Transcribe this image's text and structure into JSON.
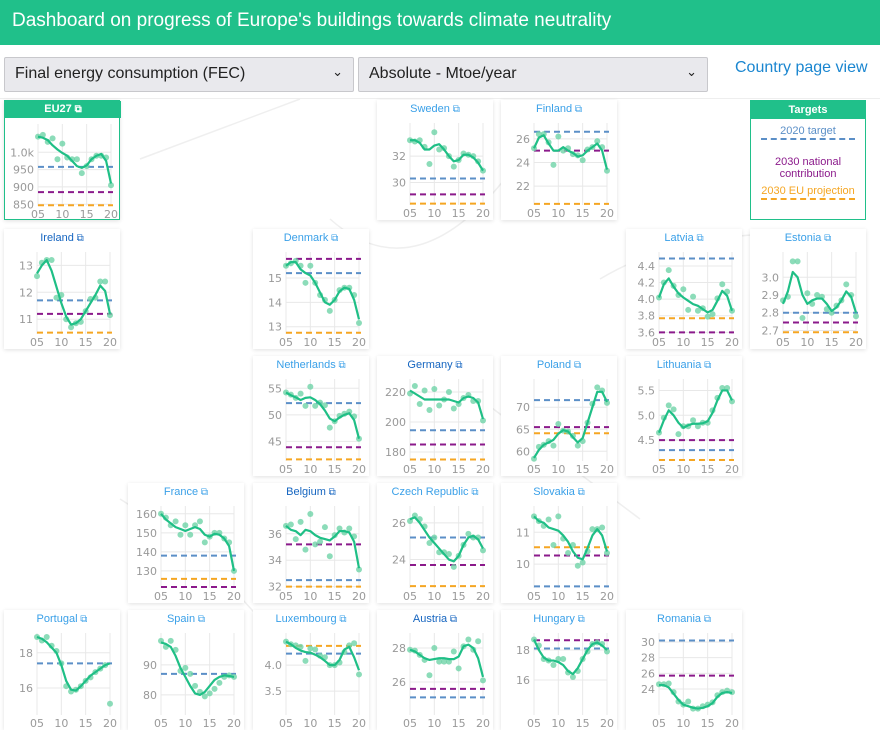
{
  "header": {
    "title": "Dashboard on progress of Europe's buildings towards climate neutrality"
  },
  "controls": {
    "indicator_select": "Final energy consumption (FEC)",
    "unit_select": "Absolute - Mtoe/year",
    "country_page_link": "Country page view"
  },
  "colors": {
    "brand": "#20c08a",
    "target_2020": "#5b8fc7",
    "target_2030_national": "#8b1a8b",
    "target_2030_eu": "#f5a623",
    "trend": "#1fbf86",
    "points": "#6fd3a8",
    "link": "#3aa0e8",
    "link_visited": "#1565c0"
  },
  "legend": {
    "title": "Targets",
    "items": [
      {
        "label": "2020 target",
        "key": "target_2020"
      },
      {
        "label": "2030 national contribution",
        "key": "target_2030_national"
      },
      {
        "label": "2030 EU projection",
        "key": "target_2030_eu"
      }
    ]
  },
  "external_link_icon": "external-link-icon",
  "years": [
    2005,
    2006,
    2007,
    2008,
    2009,
    2010,
    2011,
    2012,
    2013,
    2014,
    2015,
    2016,
    2017,
    2018,
    2019,
    2020
  ],
  "x_ticks": [
    {
      "v": 2005,
      "l": "05"
    },
    {
      "v": 2010,
      "l": "10"
    },
    {
      "v": 2015,
      "l": "15"
    },
    {
      "v": 2020,
      "l": "20"
    }
  ],
  "countries": [
    {
      "name": "EU27",
      "ylim": [
        845,
        1070
      ],
      "yticks": [
        {
          "v": 850,
          "l": "850"
        },
        {
          "v": 900,
          "l": "900"
        },
        {
          "v": 950,
          "l": "950"
        },
        {
          "v": 1000,
          "l": "1.0k"
        }
      ],
      "targets": {
        "t2020": 958,
        "t2030n": 885,
        "t2030e": 847
      },
      "points": [
        1045,
        1050,
        1030,
        1040,
        980,
        1025,
        985,
        980,
        980,
        940,
        960,
        980,
        990,
        990,
        985,
        905
      ],
      "trend": [
        1045,
        1042,
        1035,
        1020,
        1008,
        998,
        990,
        975,
        960,
        955,
        962,
        980,
        990,
        995,
        975,
        910
      ]
    },
    {
      "name": "Sweden",
      "ylim": [
        28.3,
        34.2
      ],
      "yticks": [
        {
          "v": 30,
          "l": "30"
        },
        {
          "v": 32,
          "l": "32"
        }
      ],
      "targets": {
        "t2020": 30.3,
        "t2030n": 29.1,
        "t2030e": 28.4
      },
      "points": [
        33.2,
        33.1,
        33.2,
        32.7,
        31.4,
        33.8,
        32.5,
        32.6,
        32.0,
        31.2,
        31.7,
        32.2,
        32.1,
        32.0,
        31.6,
        30.9
      ],
      "trend": [
        33.2,
        33.2,
        33.0,
        32.5,
        32.5,
        32.8,
        32.9,
        32.5,
        32.0,
        31.6,
        31.7,
        32.1,
        32.1,
        31.9,
        31.5,
        30.9
      ]
    },
    {
      "name": "Finland",
      "ylim": [
        20.4,
        27.0
      ],
      "yticks": [
        {
          "v": 22,
          "l": "22"
        },
        {
          "v": 24,
          "l": "24"
        },
        {
          "v": 26,
          "l": "26"
        }
      ],
      "targets": {
        "t2020": 26.6,
        "t2030n": 25.0,
        "t2030e": 20.5
      },
      "points": [
        25.2,
        26.4,
        26.4,
        25.7,
        23.8,
        26.2,
        25.0,
        25.2,
        24.7,
        24.6,
        24.2,
        25.1,
        25.3,
        25.8,
        25.3,
        23.3
      ],
      "trend": [
        25.2,
        26.1,
        26.3,
        25.6,
        25.0,
        25.0,
        25.3,
        25.0,
        24.8,
        24.5,
        24.6,
        25.0,
        25.3,
        25.6,
        25.0,
        23.4
      ]
    },
    {
      "name": "Ireland",
      "link_visited": true,
      "ylim": [
        10.45,
        13.35
      ],
      "yticks": [
        {
          "v": 11,
          "l": "11"
        },
        {
          "v": 12,
          "l": "12"
        },
        {
          "v": 13,
          "l": "13"
        }
      ],
      "targets": {
        "t2020": 11.7,
        "t2030n": 11.2,
        "t2030e": 10.5
      },
      "points": [
        12.6,
        13.1,
        13.2,
        13.2,
        11.8,
        11.9,
        11.0,
        10.7,
        10.85,
        10.9,
        11.3,
        11.75,
        11.8,
        12.4,
        12.4,
        11.15
      ],
      "trend": [
        12.7,
        13.0,
        13.2,
        12.8,
        12.2,
        11.6,
        11.1,
        10.8,
        10.85,
        11.0,
        11.3,
        11.6,
        11.9,
        12.25,
        12.05,
        11.2
      ]
    },
    {
      "name": "Denmark",
      "ylim": [
        12.7,
        15.9
      ],
      "yticks": [
        {
          "v": 13,
          "l": "13"
        },
        {
          "v": 14,
          "l": "14"
        },
        {
          "v": 15,
          "l": "15"
        }
      ],
      "targets": {
        "t2020": 15.2,
        "t2030n": 15.78,
        "t2030e": 12.75
      },
      "points": [
        15.5,
        15.6,
        15.7,
        15.5,
        14.8,
        15.5,
        14.8,
        14.3,
        14.1,
        13.65,
        14.1,
        14.5,
        14.6,
        14.6,
        14.3,
        13.15
      ],
      "trend": [
        15.5,
        15.65,
        15.65,
        15.35,
        15.2,
        15.1,
        14.8,
        14.4,
        14.0,
        13.9,
        14.1,
        14.45,
        14.6,
        14.55,
        14.1,
        13.3
      ]
    },
    {
      "name": "Latvia",
      "ylim": [
        3.58,
        4.52
      ],
      "yticks": [
        {
          "v": 3.6,
          "l": "3.6"
        },
        {
          "v": 3.8,
          "l": "3.8"
        },
        {
          "v": 4.0,
          "l": "4.0"
        },
        {
          "v": 4.2,
          "l": "4.2"
        },
        {
          "v": 4.4,
          "l": "4.4"
        }
      ],
      "targets": {
        "t2020": 4.49,
        "t2030n": 3.6,
        "t2030e": 3.77
      },
      "points": [
        4.02,
        4.2,
        4.35,
        4.16,
        4.05,
        4.12,
        3.87,
        4.03,
        3.86,
        3.89,
        3.79,
        3.82,
        4.01,
        4.18,
        4.09,
        3.86
      ],
      "trend": [
        4.02,
        4.18,
        4.25,
        4.15,
        4.07,
        4.02,
        3.98,
        3.94,
        3.92,
        3.88,
        3.84,
        3.87,
        3.98,
        4.1,
        4.04,
        3.86
      ]
    },
    {
      "name": "Estonia",
      "ylim": [
        2.68,
        3.12
      ],
      "yticks": [
        {
          "v": 2.7,
          "l": "2.7"
        },
        {
          "v": 2.8,
          "l": "2.8"
        },
        {
          "v": 2.9,
          "l": "2.9"
        },
        {
          "v": 3.0,
          "l": "3.0"
        }
      ],
      "targets": {
        "t2020": 2.8,
        "t2030n": 2.745,
        "t2030e": 2.69
      },
      "points": [
        2.87,
        2.89,
        3.09,
        3.09,
        2.77,
        2.91,
        2.85,
        2.9,
        2.89,
        2.82,
        2.8,
        2.84,
        2.87,
        2.96,
        2.9,
        2.78
      ],
      "trend": [
        2.85,
        2.92,
        3.03,
        3.0,
        2.9,
        2.85,
        2.87,
        2.88,
        2.88,
        2.85,
        2.81,
        2.83,
        2.87,
        2.92,
        2.89,
        2.8
      ]
    },
    {
      "name": "Netherlands",
      "ylim": [
        41.3,
        56.0
      ],
      "yticks": [
        {
          "v": 45,
          "l": "45"
        },
        {
          "v": 50,
          "l": "50"
        },
        {
          "v": 55,
          "l": "55"
        }
      ],
      "targets": {
        "t2020": 52.2,
        "t2030n": 43.9,
        "t2030e": 41.6
      },
      "points": [
        54.2,
        53.8,
        53.2,
        54,
        51.7,
        55.3,
        51.7,
        52.3,
        51.8,
        47.6,
        48.8,
        49.8,
        50.2,
        50.6,
        49.7,
        45.5
      ],
      "trend": [
        54.2,
        53.7,
        53.3,
        52.8,
        53.2,
        53.3,
        52.8,
        52.0,
        50.8,
        49.3,
        48.8,
        49.5,
        50.0,
        50.3,
        49.0,
        45.5
      ]
    },
    {
      "name": "Germany",
      "link_visited": true,
      "ylim": [
        174,
        226
      ],
      "yticks": [
        {
          "v": 180,
          "l": "180"
        },
        {
          "v": 200,
          "l": "200"
        },
        {
          "v": 220,
          "l": "220"
        }
      ],
      "targets": {
        "t2020": 194.5,
        "t2030n": 185,
        "t2030e": 175
      },
      "points": [
        219,
        224,
        212,
        221,
        208,
        222,
        211,
        215,
        220,
        209,
        212,
        216,
        218,
        214,
        214,
        201
      ],
      "trend": [
        221,
        219,
        217,
        215,
        215,
        215,
        215,
        215,
        215,
        214,
        213,
        216,
        217,
        216,
        213,
        202
      ]
    },
    {
      "name": "Poland",
      "ylim": [
        57.8,
        75.5
      ],
      "yticks": [
        {
          "v": 60,
          "l": "60"
        },
        {
          "v": 65,
          "l": "65"
        },
        {
          "v": 70,
          "l": "70"
        }
      ],
      "targets": {
        "t2020": 71.6,
        "t2030n": 65.5,
        "t2030e": 64.1
      },
      "points": [
        58.3,
        61,
        61.5,
        62.3,
        61.3,
        66.2,
        64.7,
        64.5,
        63.5,
        61.3,
        62.3,
        66.5,
        70.8,
        74.5,
        73.8,
        71
      ],
      "trend": [
        58.5,
        60.3,
        61.5,
        62.0,
        62.6,
        64,
        64.8,
        64.5,
        63.2,
        62,
        63,
        66.5,
        70,
        73.5,
        73.5,
        71.2
      ]
    },
    {
      "name": "Lithuania",
      "ylim": [
        4.08,
        5.65
      ],
      "yticks": [
        {
          "v": 4.5,
          "l": "4.5"
        },
        {
          "v": 5.0,
          "l": "5.0"
        },
        {
          "v": 5.5,
          "l": "5.5"
        }
      ],
      "targets": {
        "t2020": 4.3,
        "t2030n": 4.5,
        "t2030e": 4.1
      },
      "points": [
        4.65,
        4.95,
        5.2,
        5.12,
        4.62,
        4.78,
        4.78,
        4.9,
        4.78,
        4.85,
        4.85,
        5.1,
        5.35,
        5.55,
        5.55,
        5.28
      ],
      "trend": [
        4.65,
        4.9,
        5.1,
        5.0,
        4.85,
        4.75,
        4.8,
        4.83,
        4.83,
        4.84,
        4.88,
        5.05,
        5.3,
        5.5,
        5.5,
        5.3
      ]
    },
    {
      "name": "France",
      "ylim": [
        121,
        162
      ],
      "yticks": [
        {
          "v": 130,
          "l": "130"
        },
        {
          "v": 140,
          "l": "140"
        },
        {
          "v": 150,
          "l": "150"
        },
        {
          "v": 160,
          "l": "160"
        }
      ],
      "targets": {
        "t2020": 138,
        "t2030n": 121.5,
        "t2030e": 125.8
      },
      "points": [
        160,
        158,
        154,
        156,
        149,
        154,
        149,
        154,
        156,
        145,
        148,
        150,
        150,
        147,
        145,
        130
      ],
      "trend": [
        160,
        157,
        155,
        153,
        152,
        151,
        152,
        153,
        152,
        149,
        148,
        149.5,
        149,
        147,
        143,
        130
      ]
    },
    {
      "name": "Belgium",
      "link_visited": true,
      "ylim": [
        31.9,
        37.8
      ],
      "yticks": [
        {
          "v": 32,
          "l": "32"
        },
        {
          "v": 34,
          "l": "34"
        },
        {
          "v": 36,
          "l": "36"
        }
      ],
      "targets": {
        "t2020": 32.5,
        "t2030n": 35.2,
        "t2030e": 32.0
      },
      "points": [
        36.6,
        36.7,
        35.6,
        36.9,
        34.8,
        37.5,
        35.2,
        35.4,
        36.5,
        34.3,
        35.9,
        36.4,
        36.1,
        36.4,
        35.8,
        33.3
      ],
      "trend": [
        36.6,
        36.3,
        36.2,
        35.9,
        36.3,
        36.2,
        35.9,
        35.7,
        35.6,
        35.5,
        35.8,
        36.2,
        36.2,
        36.1,
        35.4,
        33.4
      ]
    },
    {
      "name": "Czech Republic",
      "ylim": [
        22.45,
        26.7
      ],
      "yticks": [
        {
          "v": 24,
          "l": "24"
        },
        {
          "v": 26,
          "l": "26"
        }
      ],
      "targets": {
        "t2020": 25.2,
        "t2030n": 23.7,
        "t2030e": 22.55
      },
      "points": [
        26.1,
        26.4,
        26.2,
        25.8,
        24.9,
        25.2,
        24.4,
        24.4,
        24.3,
        23.6,
        24.2,
        24.8,
        25.4,
        25.2,
        25.2,
        24.5
      ],
      "trend": [
        26.2,
        26.3,
        26.0,
        25.6,
        25.2,
        24.9,
        24.6,
        24.3,
        24.0,
        23.9,
        24.2,
        24.8,
        25.2,
        25.3,
        25.1,
        24.6
      ]
    },
    {
      "name": "Slovakia",
      "ylim": [
        9.25,
        11.7
      ],
      "yticks": [
        {
          "v": 10,
          "l": "10"
        },
        {
          "v": 11,
          "l": "11"
        }
      ],
      "targets": {
        "t2020": 9.3,
        "t2030n": 10.27,
        "t2030e": 10.53
      },
      "points": [
        11.5,
        11.35,
        11.2,
        11.4,
        10.6,
        11.5,
        10.8,
        10.35,
        10.6,
        9.95,
        10.05,
        10.4,
        11.1,
        11.1,
        11.15,
        10.35
      ],
      "trend": [
        11.5,
        11.35,
        11.3,
        11.15,
        11.1,
        11.05,
        10.9,
        10.7,
        10.4,
        10.2,
        10.15,
        10.5,
        10.9,
        11.1,
        10.9,
        10.4
      ]
    },
    {
      "name": "Portugal",
      "ylim": [
        14.46,
        18.9
      ],
      "yticks": [
        {
          "v": 16,
          "l": "16"
        },
        {
          "v": 18,
          "l": "18"
        }
      ],
      "targets": {
        "t2020": 17.4
      },
      "points": [
        18.9,
        18.7,
        18.9,
        18.4,
        18.1,
        17.4,
        16.1,
        15.8,
        15.9,
        16.1,
        16.4,
        16.6,
        16.9,
        17.1,
        17.3,
        15.1
      ],
      "trend": [
        18.9,
        18.8,
        18.6,
        18.3,
        18.0,
        17.3,
        16.4,
        15.9,
        15.85,
        16.1,
        16.4,
        16.7,
        16.9,
        17.1,
        17.3,
        17.4
      ]
    },
    {
      "name": "Spain",
      "ylim": [
        73.3,
        99.3
      ],
      "yticks": [
        {
          "v": 80,
          "l": "80"
        },
        {
          "v": 90,
          "l": "90"
        }
      ],
      "targets": {
        "t2020": 87
      },
      "points": [
        98,
        96,
        98,
        95,
        88,
        89,
        87,
        83,
        81,
        79.5,
        80.5,
        82,
        84,
        86,
        86.5,
        86
      ],
      "trend": [
        97.5,
        97,
        96,
        93,
        89,
        86,
        83,
        80.5,
        80,
        81,
        83,
        85,
        86,
        86.5,
        86.3,
        86
      ]
    },
    {
      "name": "Luxembourg",
      "ylim": [
        3.04,
        4.54
      ],
      "yticks": [
        {
          "v": 3.5,
          "l": "3.5"
        },
        {
          "v": 4.0,
          "l": "4.0"
        }
      ],
      "targets": {
        "t2020": 4.22,
        "t2030e": 4.37
      },
      "points": [
        4.45,
        4.4,
        4.38,
        4.35,
        4.08,
        4.32,
        4.3,
        4.18,
        4.15,
        4.0,
        4.0,
        4.05,
        4.25,
        4.38,
        4.42,
        3.82
      ],
      "trend": [
        4.45,
        4.4,
        4.33,
        4.28,
        4.25,
        4.24,
        4.2,
        4.15,
        4.08,
        4.0,
        4.0,
        4.1,
        4.3,
        4.35,
        4.15,
        3.9
      ]
    },
    {
      "name": "Austria",
      "link_visited": true,
      "ylim": [
        24.06,
        28.65
      ],
      "yticks": [
        {
          "v": 26,
          "l": "26"
        },
        {
          "v": 28,
          "l": "28"
        }
      ],
      "targets": {
        "t2020": 25.1,
        "t2030n": 25.6
      },
      "points": [
        27.9,
        27.85,
        27.6,
        27.3,
        26.4,
        28.0,
        27.2,
        27.2,
        27.2,
        27.8,
        26.8,
        28.1,
        28.5,
        27.9,
        28.4,
        26.1
      ],
      "trend": [
        27.9,
        27.8,
        27.6,
        27.4,
        27.3,
        27.35,
        27.4,
        27.4,
        27.35,
        27.35,
        27.5,
        28.1,
        28.2,
        28.0,
        27.4,
        26.3
      ]
    },
    {
      "name": "Hungary",
      "ylim": [
        13.67,
        18.87
      ],
      "yticks": [
        {
          "v": 16,
          "l": "16"
        },
        {
          "v": 18,
          "l": "18"
        }
      ],
      "targets": {
        "t2020": 18.1,
        "t2030n": 18.65
      },
      "points": [
        18.7,
        18.3,
        17.4,
        17.3,
        17.0,
        17.4,
        17.4,
        16.5,
        16.2,
        16.6,
        17.4,
        17.9,
        18.4,
        18.5,
        18.4,
        17.9
      ],
      "trend": [
        18.7,
        18.0,
        17.5,
        17.3,
        17.3,
        17.2,
        17.0,
        16.6,
        16.4,
        16.8,
        17.4,
        18.0,
        18.4,
        18.5,
        18.3,
        18.0
      ]
    },
    {
      "name": "Romania",
      "ylim": [
        20.68,
        30.64
      ],
      "yticks": [
        {
          "v": 24,
          "l": "24"
        },
        {
          "v": 26,
          "l": "26"
        },
        {
          "v": 28,
          "l": "28"
        },
        {
          "v": 30,
          "l": "30"
        }
      ],
      "targets": {
        "t2020": 30.2,
        "t2030n": 25.7
      },
      "points": [
        24.6,
        24.6,
        24.7,
        23.6,
        22.4,
        22.0,
        22.4,
        21.5,
        21.5,
        21.8,
        22.0,
        22.3,
        23.2,
        23.6,
        23.8,
        23.6
      ],
      "trend": [
        24.5,
        24.5,
        24.2,
        23.4,
        22.6,
        22.0,
        21.8,
        21.6,
        21.5,
        21.6,
        21.8,
        22.2,
        23.0,
        23.5,
        23.6,
        23.5
      ]
    }
  ]
}
